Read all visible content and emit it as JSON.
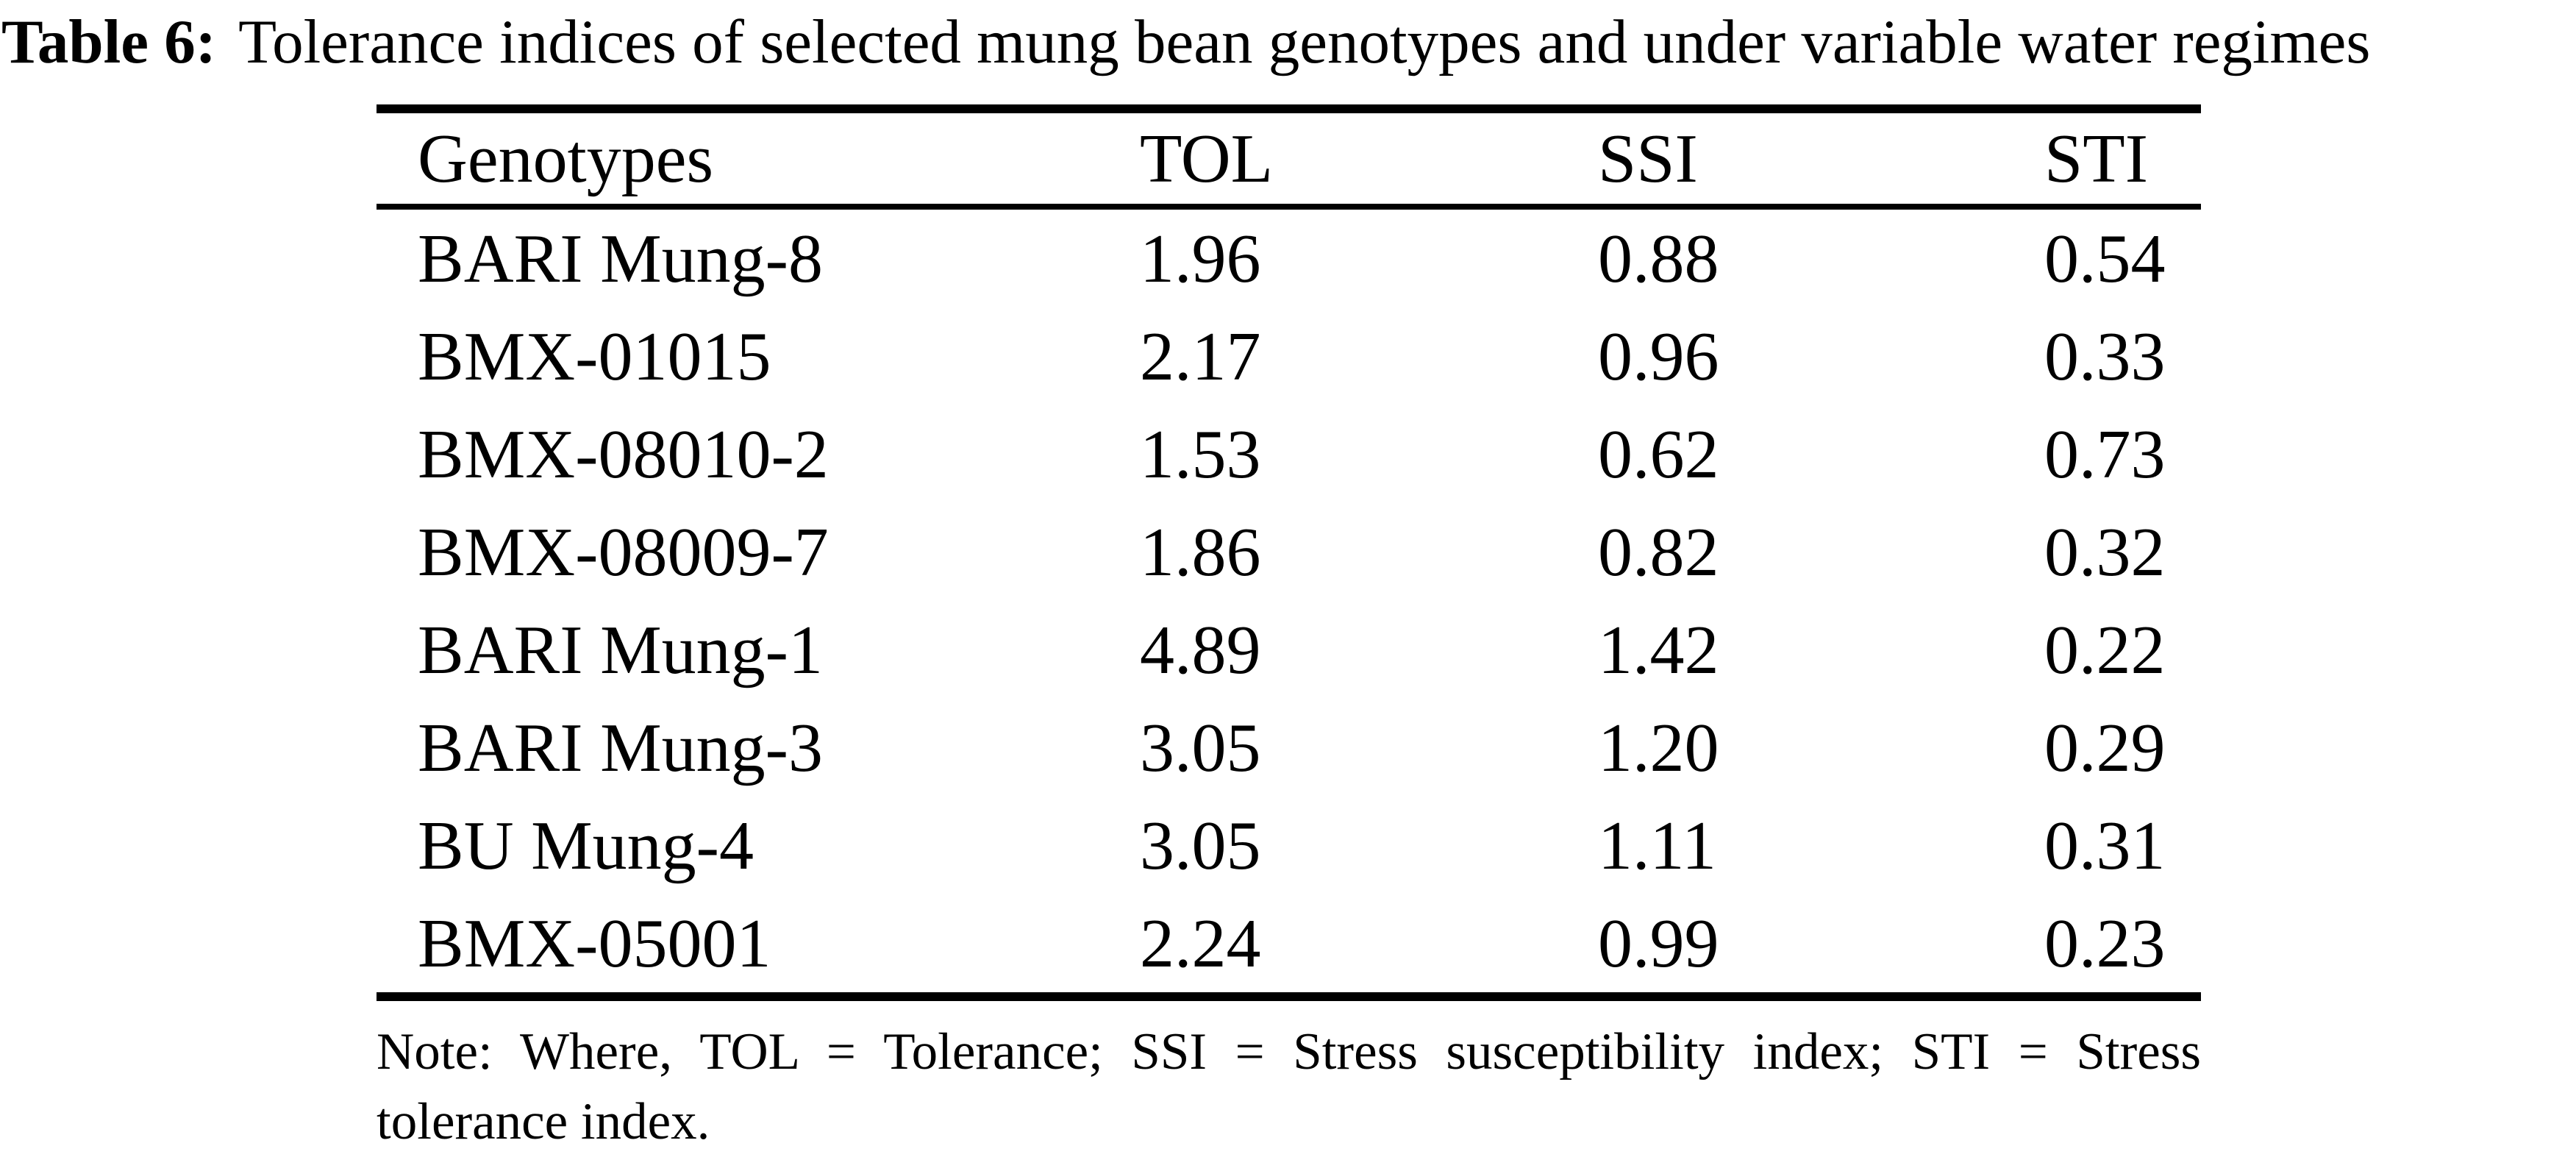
{
  "title": {
    "label": "Table 6:",
    "text": "Tolerance indices of selected mung bean genotypes and under variable water regimes"
  },
  "table": {
    "columns": [
      "Genotypes",
      "TOL",
      "SSI",
      "STI"
    ],
    "rows": [
      {
        "genotype": "BARI Mung-8",
        "tol": "1.96",
        "ssi": "0.88",
        "sti": "0.54"
      },
      {
        "genotype": "BMX-01015",
        "tol": "2.17",
        "ssi": "0.96",
        "sti": "0.33"
      },
      {
        "genotype": "BMX-08010-2",
        "tol": "1.53",
        "ssi": "0.62",
        "sti": "0.73"
      },
      {
        "genotype": "BMX-08009-7",
        "tol": "1.86",
        "ssi": "0.82",
        "sti": "0.32"
      },
      {
        "genotype": "BARI Mung-1",
        "tol": "4.89",
        "ssi": "1.42",
        "sti": "0.22"
      },
      {
        "genotype": "BARI Mung-3",
        "tol": "3.05",
        "ssi": "1.20",
        "sti": "0.29"
      },
      {
        "genotype": "BU Mung-4",
        "tol": "3.05",
        "ssi": "1.11",
        "sti": "0.31"
      },
      {
        "genotype": "BMX-05001",
        "tol": "2.24",
        "ssi": "0.99",
        "sti": "0.23"
      }
    ]
  },
  "note": {
    "line1": "Note: Where, TOL = Tolerance; SSI = Stress susceptibility index; STI = Stress",
    "line2": "tolerance index."
  },
  "colors": {
    "text": "#000000",
    "background": "#ffffff",
    "rule": "#000000"
  },
  "chart_data": {
    "type": "table",
    "title": "Table 6: Tolerance indices of selected mung bean genotypes and under variable water regimes",
    "columns": [
      "Genotypes",
      "TOL",
      "SSI",
      "STI"
    ],
    "rows": [
      [
        "BARI Mung-8",
        1.96,
        0.88,
        0.54
      ],
      [
        "BMX-01015",
        2.17,
        0.96,
        0.33
      ],
      [
        "BMX-08010-2",
        1.53,
        0.62,
        0.73
      ],
      [
        "BMX-08009-7",
        1.86,
        0.82,
        0.32
      ],
      [
        "BARI Mung-1",
        4.89,
        1.42,
        0.22
      ],
      [
        "BARI Mung-3",
        3.05,
        1.2,
        0.29
      ],
      [
        "BU Mung-4",
        3.05,
        1.11,
        0.31
      ],
      [
        "BMX-05001",
        2.24,
        0.99,
        0.23
      ]
    ],
    "footnote": "Note: Where, TOL = Tolerance; SSI = Stress susceptibility index; STI = Stress tolerance index."
  }
}
